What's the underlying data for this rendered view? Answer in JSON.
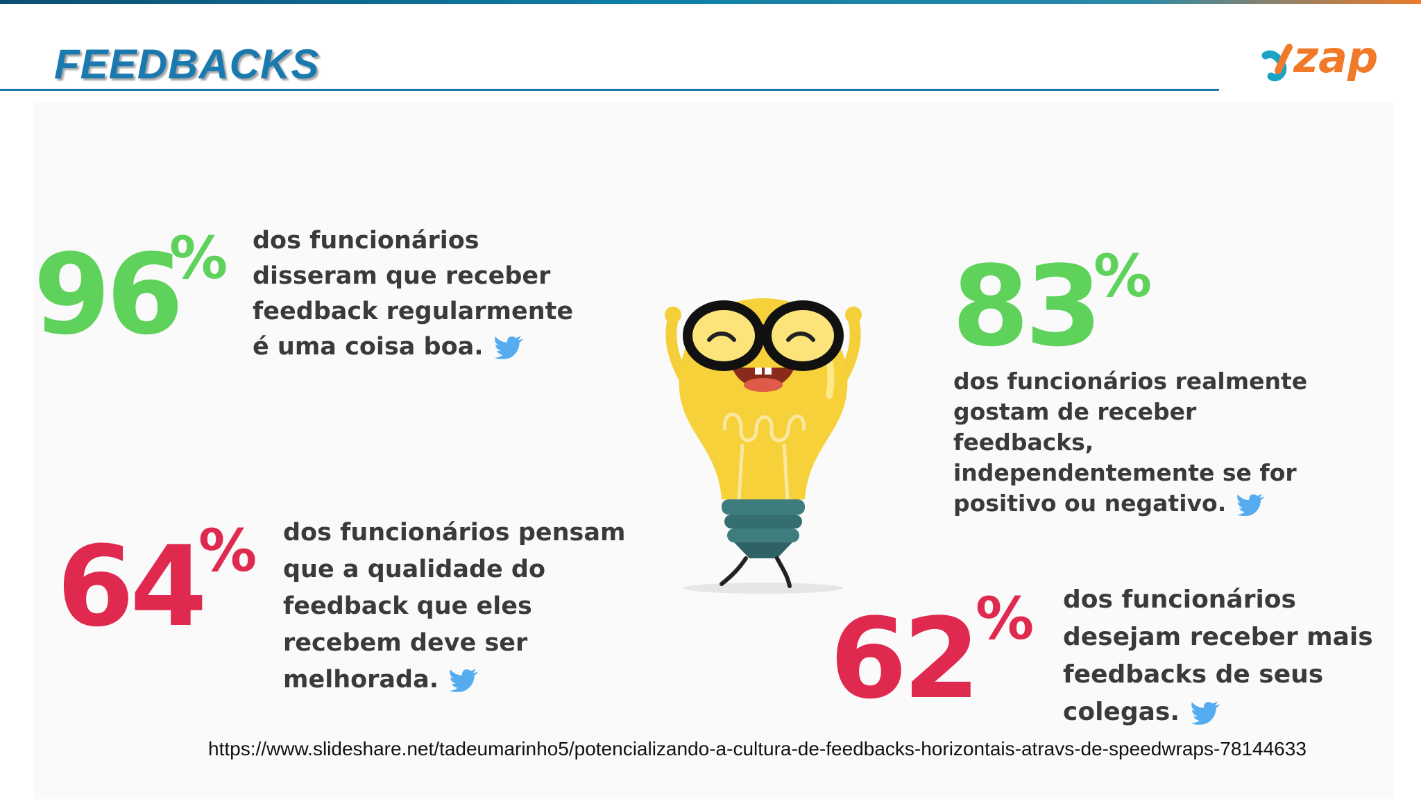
{
  "header": {
    "title": "FEEDBACKS",
    "logo_text": "zap",
    "accent_color": "#1a7ab0",
    "logo_color": "#f07a2a"
  },
  "stats": [
    {
      "value": "96",
      "unit": "%",
      "text": "dos funcionários disseram que receber feedback regularmente é uma coisa boa.",
      "color": "#5fd25c"
    },
    {
      "value": "83",
      "unit": "%",
      "text": "dos funcionários realmente gostam de receber feedbacks, independentemente se for positivo ou negativo.",
      "color": "#5fd25c"
    },
    {
      "value": "64",
      "unit": "%",
      "text": "dos funcionários pensam que a qualidade do feedback que eles recebem deve ser melhorada.",
      "color": "#e0294f"
    },
    {
      "value": "62",
      "unit": "%",
      "text": "dos funcionários desejam receber mais feedbacks de seus colegas.",
      "color": "#e0294f"
    }
  ],
  "illustration": {
    "icon": "lightbulb-mascot-icon"
  },
  "share_icon": "twitter-bird-icon",
  "source_url": "https://www.slideshare.net/tadeumarinho5/potencializando-a-cultura-de-feedbacks-horizontais-atravs-de-speedwraps-78144633"
}
